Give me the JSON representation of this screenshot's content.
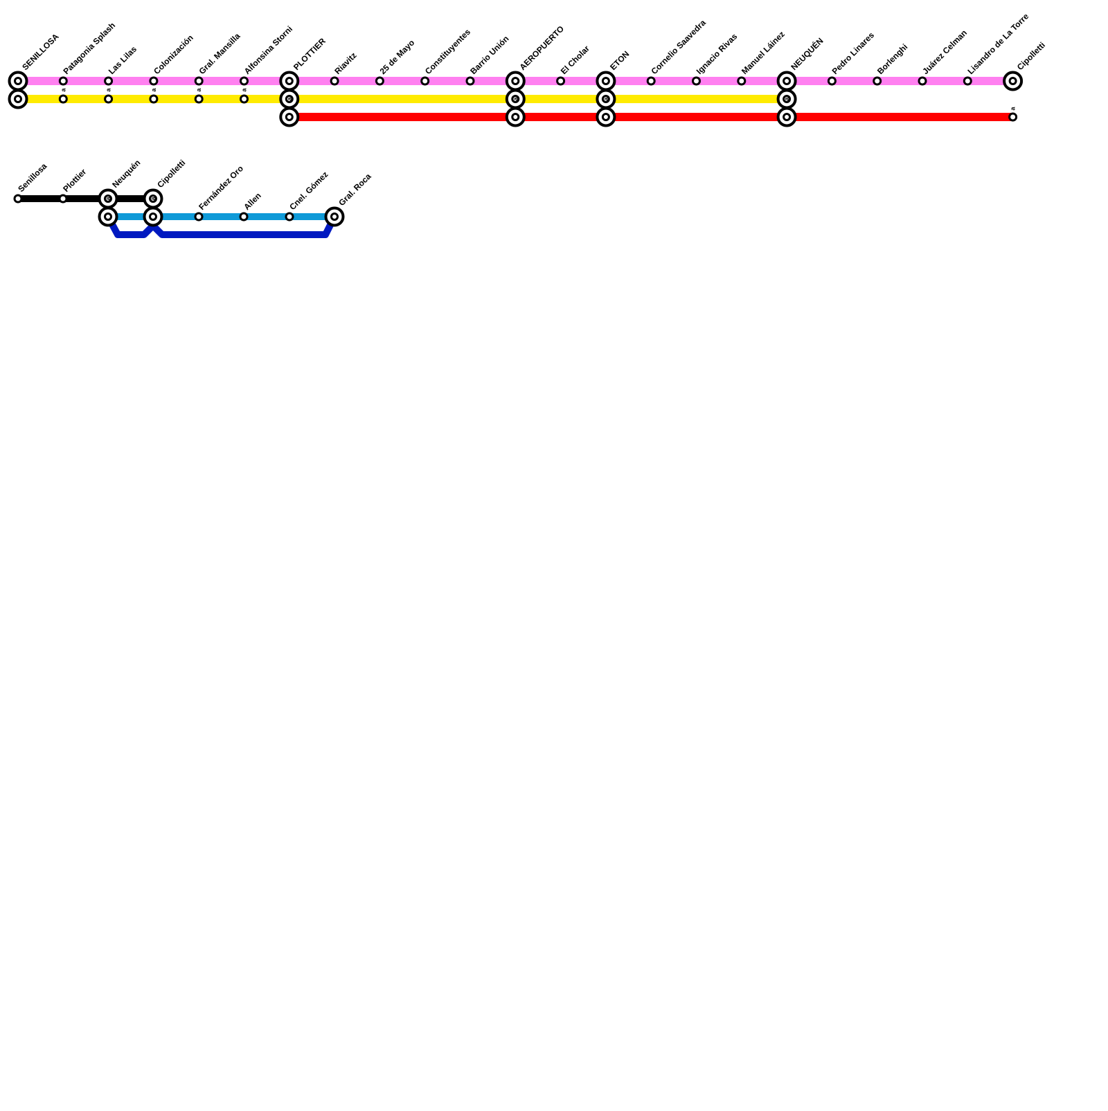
{
  "map_top": {
    "stations": [
      {
        "name": "SENILLOSA"
      },
      {
        "name": "Patagonia Splash",
        "note": "a"
      },
      {
        "name": "Las Lilas",
        "note": "a"
      },
      {
        "name": "Colonización",
        "note": "a"
      },
      {
        "name": "Gral. Mansilla",
        "note": "a"
      },
      {
        "name": "Alfonsina Storni",
        "note": "a"
      },
      {
        "name": "PLOTTIER",
        "note": "a"
      },
      {
        "name": "Riavitz"
      },
      {
        "name": "25 de Mayo"
      },
      {
        "name": "Constituyentes"
      },
      {
        "name": "Barrio Unión"
      },
      {
        "name": "AEROPUERTO",
        "note": "a"
      },
      {
        "name": "El Cholar"
      },
      {
        "name": "ETON",
        "note": "a"
      },
      {
        "name": "Cornelio Saavedra"
      },
      {
        "name": "Ignacio Rivas"
      },
      {
        "name": "Manuel Láinez"
      },
      {
        "name": "NEUQUÉN",
        "note": "a"
      },
      {
        "name": "Pedro Linares"
      },
      {
        "name": "Borlenghi"
      },
      {
        "name": "Juárez Celman"
      },
      {
        "name": "Lisandro de La Torre"
      },
      {
        "name": "Cipolletti",
        "note": "a"
      }
    ],
    "lines": [
      {
        "color": "#ff80f0"
      },
      {
        "color": "#ffeb00"
      },
      {
        "color": "#ff0000"
      }
    ]
  },
  "map_bottom": {
    "stations": [
      {
        "name": "Senillosa"
      },
      {
        "name": "Plottier"
      },
      {
        "name": "Neuquén",
        "note": "a"
      },
      {
        "name": "Cipolletti",
        "note": "a"
      },
      {
        "name": "Fernández Oro"
      },
      {
        "name": "Allen"
      },
      {
        "name": "Cnel. Gómez"
      },
      {
        "name": "Gral. Roca"
      }
    ],
    "lines": [
      {
        "color": "#000000"
      },
      {
        "color": "#0f9ad8"
      },
      {
        "color": "#0019c0"
      }
    ]
  }
}
